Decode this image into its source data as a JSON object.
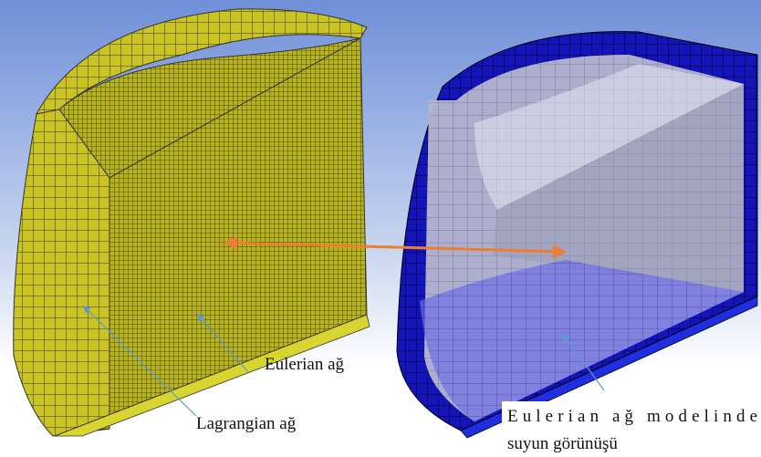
{
  "labels": {
    "eulerian_mesh": "Eulerian ağ",
    "lagrangian_mesh": "Lagrangian ağ",
    "water_view": [
      "Eulerian ağ modelinde",
      "suyun görünüşü"
    ]
  }
}
